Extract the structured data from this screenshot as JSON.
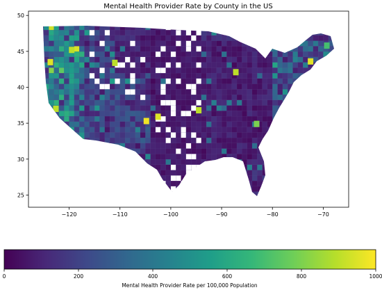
{
  "chart_data": {
    "type": "heatmap",
    "title": "Mental Health Provider Rate by County in the US",
    "x_ticks": [
      -120,
      -110,
      -100,
      -90,
      -80,
      -70
    ],
    "y_ticks": [
      25,
      30,
      35,
      40,
      45,
      50
    ],
    "xlim": [
      -128,
      -65
    ],
    "ylim": [
      23.3,
      50.6
    ],
    "colorbar": {
      "label": "Mental Health Provider Rate per 100,000 Population",
      "ticks": [
        0,
        200,
        400,
        600,
        800,
        1000
      ],
      "range": [
        0,
        1000
      ],
      "colormap": "viridis",
      "orientation": "horizontal",
      "placement": "bottom"
    },
    "viridis_stops": [
      "#440154",
      "#482878",
      "#3e4989",
      "#31688e",
      "#26828e",
      "#1f9e89",
      "#35b779",
      "#6ece58",
      "#b5de2b",
      "#fde725"
    ],
    "no_data_color": "#ffffff",
    "regions": [
      {
        "lon_min": -125,
        "lon_max": -117,
        "lat_min": 32,
        "lat_max": 49,
        "level": 380
      },
      {
        "lon_min": -117,
        "lon_max": -111,
        "lat_min": 42,
        "lat_max": 49,
        "level": 160
      },
      {
        "lon_min": -117,
        "lon_max": -104,
        "lat_min": 31,
        "lat_max": 42,
        "level": 180
      },
      {
        "lon_min": -111,
        "lon_max": -104,
        "lat_min": 42,
        "lat_max": 49,
        "level": 90
      },
      {
        "lon_min": -104,
        "lon_max": -94,
        "lat_min": 26,
        "lat_max": 49,
        "level": 60
      },
      {
        "lon_min": -94,
        "lon_max": -80,
        "lat_min": 29,
        "lat_max": 47,
        "level": 80
      },
      {
        "lon_min": -80,
        "lon_max": -67,
        "lat_min": 35,
        "lat_max": 47,
        "level": 260
      }
    ],
    "hotspots": [
      {
        "lon": -123.7,
        "lat": 43.5,
        "level": 950
      },
      {
        "lon": -119.5,
        "lat": 45.2,
        "level": 900
      },
      {
        "lon": -104.8,
        "lat": 35.3,
        "level": 980
      },
      {
        "lon": -102.5,
        "lat": 35.9,
        "level": 950
      },
      {
        "lon": -94.5,
        "lat": 36.8,
        "level": 900
      },
      {
        "lon": -87.2,
        "lat": 42.1,
        "level": 900
      },
      {
        "lon": -72.5,
        "lat": 43.6,
        "level": 960
      },
      {
        "lon": -75.4,
        "lat": 40.2,
        "level": 900
      },
      {
        "lon": -122.6,
        "lat": 37.0,
        "level": 900
      },
      {
        "lon": -111.0,
        "lat": 43.4,
        "level": 900
      },
      {
        "lon": -69.3,
        "lat": 45.8,
        "level": 700
      },
      {
        "lon": -83.1,
        "lat": 34.9,
        "level": 800
      }
    ]
  }
}
